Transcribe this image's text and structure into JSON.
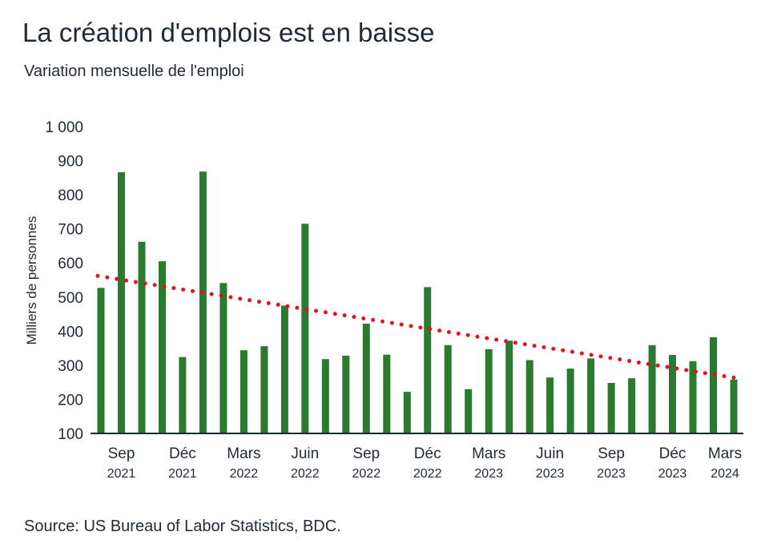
{
  "title": "La création d'emplois est en baisse",
  "subtitle": "Variation mensuelle de l'emploi",
  "source": "Source: US Bureau of Labor Statistics, BDC.",
  "colors": {
    "bar": "#2a7a2f",
    "trend": "#e8101a",
    "axis": "#1f2a35"
  },
  "chart_data": {
    "type": "bar",
    "ylabel": "Milliers de personnes",
    "ylim": [
      100,
      1000
    ],
    "yticks": [
      "1 000",
      "900",
      "800",
      "700",
      "600",
      "500",
      "400",
      "300",
      "200",
      "100"
    ],
    "categories": [
      "2021-08",
      "2021-09",
      "2021-10",
      "2021-11",
      "2021-12",
      "2022-01",
      "2022-02",
      "2022-03",
      "2022-04",
      "2022-05",
      "2022-06",
      "2022-07",
      "2022-08",
      "2022-09",
      "2022-10",
      "2022-11",
      "2022-12",
      "2023-01",
      "2023-02",
      "2023-03",
      "2023-04",
      "2023-05",
      "2023-06",
      "2023-07",
      "2023-08",
      "2023-09",
      "2023-10",
      "2023-11",
      "2023-12",
      "2024-01",
      "2024-02",
      "2024-03"
    ],
    "values": [
      527,
      866,
      662,
      605,
      324,
      868,
      541,
      344,
      356,
      475,
      715,
      318,
      328,
      422,
      331,
      222,
      529,
      359,
      230,
      347,
      372,
      315,
      264,
      290,
      320,
      248,
      262,
      359,
      330,
      312,
      382,
      258
    ],
    "trend": {
      "start": 562,
      "end": 262,
      "style": "dotted"
    },
    "xlabels": [
      {
        "month": "Sep",
        "year": "2021",
        "index": 1
      },
      {
        "month": "Déc",
        "year": "2021",
        "index": 4
      },
      {
        "month": "Mars",
        "year": "2022",
        "index": 7
      },
      {
        "month": "Juin",
        "year": "2022",
        "index": 10
      },
      {
        "month": "Sep",
        "year": "2022",
        "index": 13
      },
      {
        "month": "Déc",
        "year": "2022",
        "index": 16
      },
      {
        "month": "Mars",
        "year": "2023",
        "index": 19
      },
      {
        "month": "Juin",
        "year": "2023",
        "index": 22
      },
      {
        "month": "Sep",
        "year": "2023",
        "index": 25
      },
      {
        "month": "Déc",
        "year": "2023",
        "index": 28
      },
      {
        "month": "Mars",
        "year": "2024",
        "index": 31
      }
    ],
    "grid": false,
    "legend": "none"
  }
}
